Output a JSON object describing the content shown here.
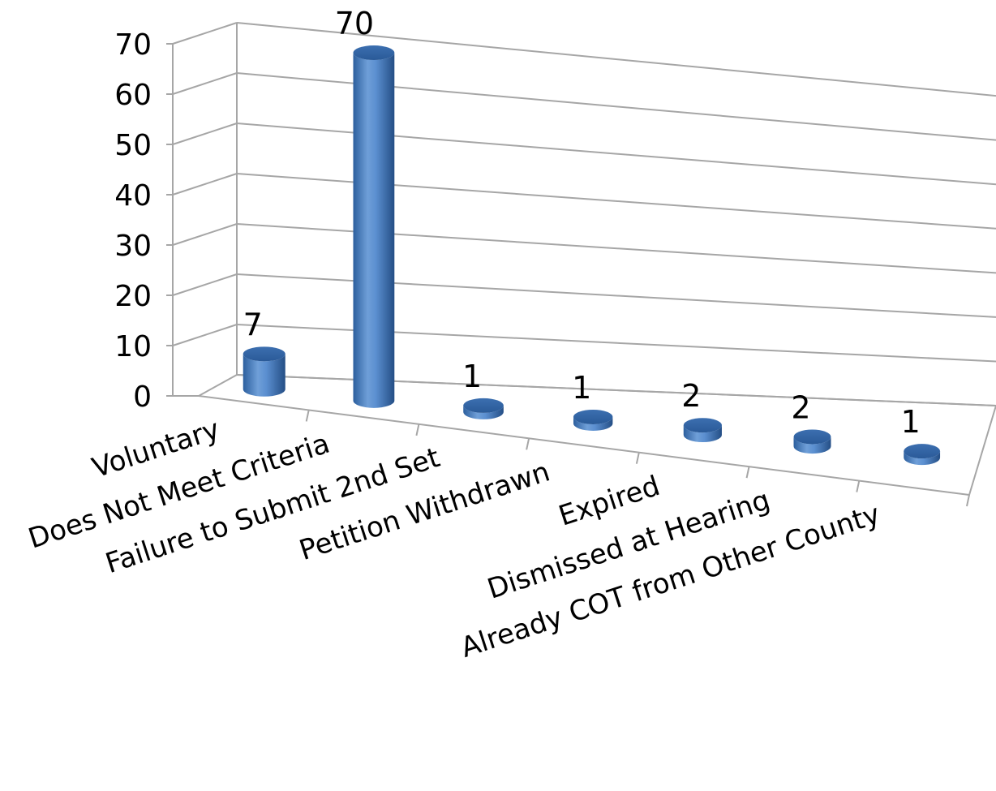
{
  "chart_data": {
    "type": "bar",
    "style": "3d-cylinder",
    "categories": [
      "Voluntary",
      "Does Not Meet Criteria",
      "Failure to Submit 2nd Set",
      "Petition Withdrawn",
      "Expired",
      "Dismissed at Hearing",
      "Already COT from Other County"
    ],
    "values": [
      7,
      70,
      1,
      1,
      2,
      2,
      1
    ],
    "data_labels": [
      "7",
      "70",
      "1",
      "1",
      "2",
      "2",
      "1"
    ],
    "ylim": [
      0,
      70
    ],
    "y_ticks": [
      0,
      10,
      20,
      30,
      40,
      50,
      60,
      70
    ],
    "y_tick_labels": [
      "0",
      "10",
      "20",
      "30",
      "40",
      "50",
      "60",
      "70"
    ],
    "grid": true,
    "legend": "none",
    "colors": {
      "bar": "#4f81bd",
      "bar_dark": "#2c5f9e",
      "bar_light": "#8db3e2",
      "grid": "#a6a6a6"
    }
  }
}
